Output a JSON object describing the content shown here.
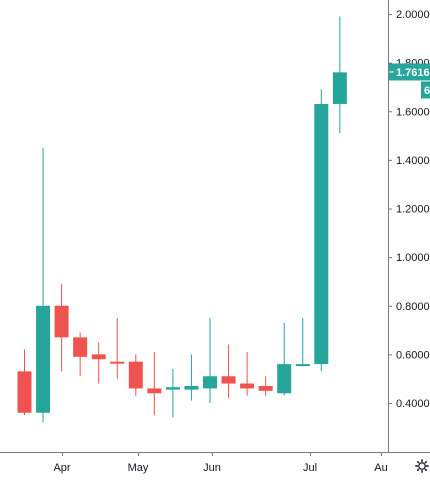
{
  "chart_data": {
    "type": "candlestick",
    "x_ticks": [
      "Apr",
      "May",
      "Jun",
      "Jul",
      "Au"
    ],
    "y_ticks": [
      "2.0000",
      "1.8000",
      "1.6000",
      "1.4000",
      "1.2000",
      "1.0000",
      "0.8000",
      "0.6000",
      "0.4000"
    ],
    "ylim": [
      0.2,
      2.06
    ],
    "last_price_label": "1.7616",
    "secondary_label": "6",
    "colors": {
      "up": "#26a69a",
      "down": "#ef5350",
      "axis": "#787b86",
      "text": "#131722"
    },
    "candles": [
      {
        "o": 0.53,
        "h": 0.62,
        "l": 0.35,
        "c": 0.36
      },
      {
        "o": 0.36,
        "h": 1.45,
        "l": 0.32,
        "c": 0.8
      },
      {
        "o": 0.8,
        "h": 0.89,
        "l": 0.53,
        "c": 0.67
      },
      {
        "o": 0.67,
        "h": 0.69,
        "l": 0.51,
        "c": 0.59
      },
      {
        "o": 0.6,
        "h": 0.65,
        "l": 0.48,
        "c": 0.58
      },
      {
        "o": 0.57,
        "h": 0.75,
        "l": 0.5,
        "c": 0.565
      },
      {
        "o": 0.57,
        "h": 0.6,
        "l": 0.43,
        "c": 0.46
      },
      {
        "o": 0.46,
        "h": 0.61,
        "l": 0.35,
        "c": 0.44
      },
      {
        "o": 0.455,
        "h": 0.54,
        "l": 0.34,
        "c": 0.465
      },
      {
        "o": 0.455,
        "h": 0.6,
        "l": 0.41,
        "c": 0.47
      },
      {
        "o": 0.46,
        "h": 0.75,
        "l": 0.4,
        "c": 0.51
      },
      {
        "o": 0.51,
        "h": 0.64,
        "l": 0.42,
        "c": 0.48
      },
      {
        "o": 0.48,
        "h": 0.61,
        "l": 0.43,
        "c": 0.46
      },
      {
        "o": 0.47,
        "h": 0.51,
        "l": 0.43,
        "c": 0.45
      },
      {
        "o": 0.44,
        "h": 0.73,
        "l": 0.43,
        "c": 0.56
      },
      {
        "o": 0.555,
        "h": 0.75,
        "l": 0.55,
        "c": 0.56
      },
      {
        "o": 0.56,
        "h": 1.69,
        "l": 0.53,
        "c": 1.63
      },
      {
        "o": 1.63,
        "h": 1.99,
        "l": 1.51,
        "c": 1.76
      }
    ]
  }
}
